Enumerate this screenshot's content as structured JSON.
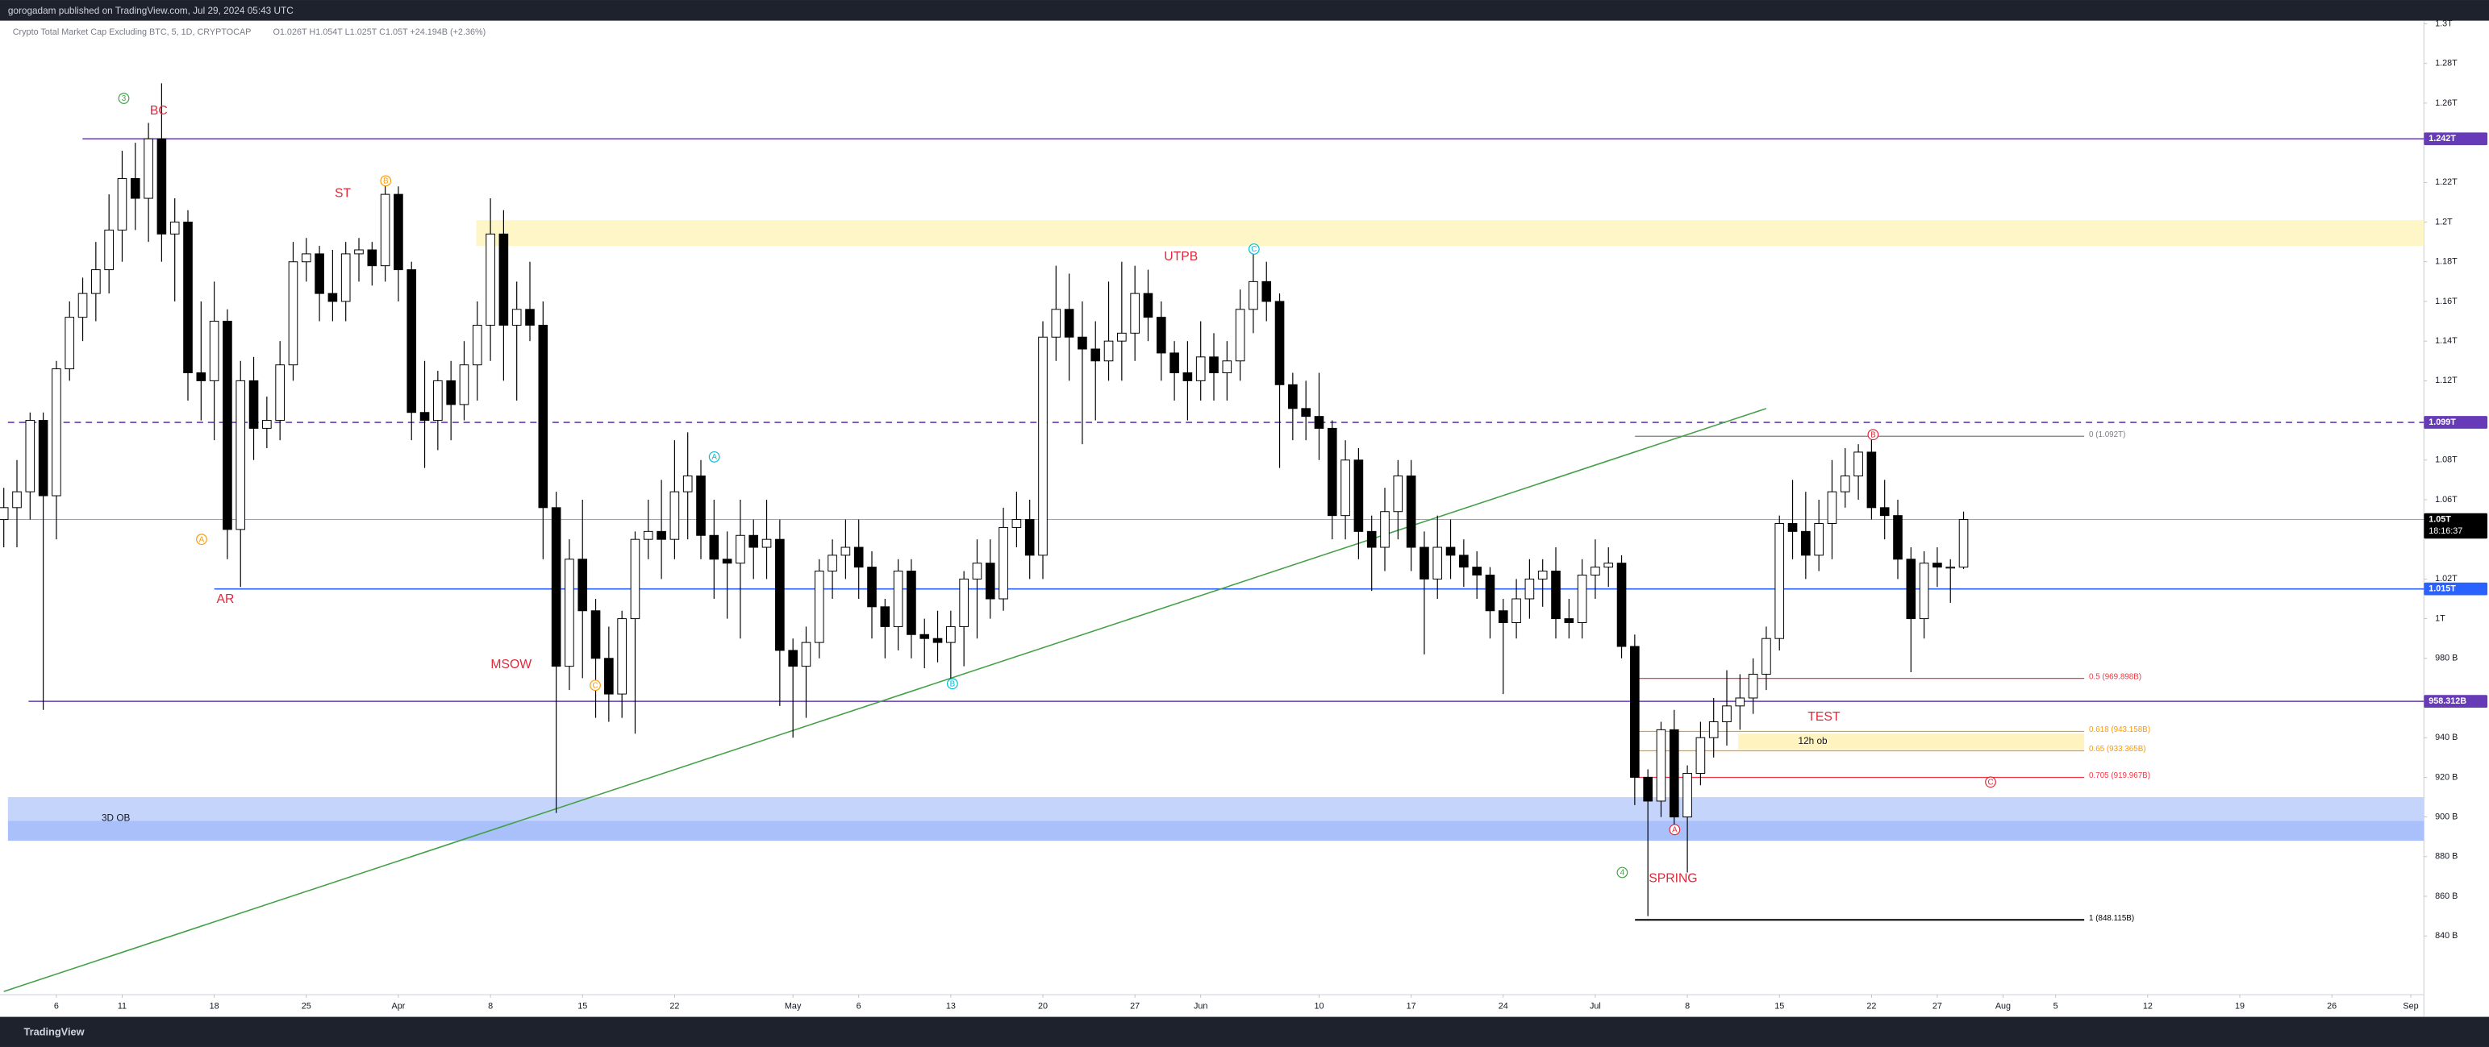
{
  "header": {
    "published": "gorogadam published on TradingView.com, Jul 29, 2024 05:43 UTC",
    "symbol": "Crypto Total Market Cap Excluding BTC, 5, 1D, CRYPTOCAP",
    "ohlc": "O1.026T H1.054T L1.025T C1.05T +24.194B (+2.36%)"
  },
  "chart_data": {
    "type": "candlestick",
    "up_color": "#ffffff",
    "down_color": "#000000",
    "x": [
      "2024-03-02",
      "2024-03-03",
      "2024-03-04",
      "2024-03-05",
      "2024-03-06",
      "2024-03-07",
      "2024-03-08",
      "2024-03-09",
      "2024-03-10",
      "2024-03-11",
      "2024-03-12",
      "2024-03-13",
      "2024-03-14",
      "2024-03-15",
      "2024-03-16",
      "2024-03-17",
      "2024-03-18",
      "2024-03-19",
      "2024-03-20",
      "2024-03-21",
      "2024-03-22",
      "2024-03-23",
      "2024-03-24",
      "2024-03-25",
      "2024-03-26",
      "2024-03-27",
      "2024-03-28",
      "2024-03-29",
      "2024-03-30",
      "2024-03-31",
      "2024-04-01",
      "2024-04-02",
      "2024-04-03",
      "2024-04-04",
      "2024-04-05",
      "2024-04-06",
      "2024-04-07",
      "2024-04-08",
      "2024-04-09",
      "2024-04-10",
      "2024-04-11",
      "2024-04-12",
      "2024-04-13",
      "2024-04-14",
      "2024-04-15",
      "2024-04-16",
      "2024-04-17",
      "2024-04-18",
      "2024-04-19",
      "2024-04-20",
      "2024-04-21",
      "2024-04-22",
      "2024-04-23",
      "2024-04-24",
      "2024-04-25",
      "2024-04-26",
      "2024-04-27",
      "2024-04-28",
      "2024-04-29",
      "2024-04-30",
      "2024-05-01",
      "2024-05-02",
      "2024-05-03",
      "2024-05-04",
      "2024-05-05",
      "2024-05-06",
      "2024-05-07",
      "2024-05-08",
      "2024-05-09",
      "2024-05-10",
      "2024-05-11",
      "2024-05-12",
      "2024-05-13",
      "2024-05-14",
      "2024-05-15",
      "2024-05-16",
      "2024-05-17",
      "2024-05-18",
      "2024-05-19",
      "2024-05-20",
      "2024-05-21",
      "2024-05-22",
      "2024-05-23",
      "2024-05-24",
      "2024-05-25",
      "2024-05-26",
      "2024-05-27",
      "2024-05-28",
      "2024-05-29",
      "2024-05-30",
      "2024-05-31",
      "2024-06-01",
      "2024-06-02",
      "2024-06-03",
      "2024-06-04",
      "2024-06-05",
      "2024-06-06",
      "2024-06-07",
      "2024-06-08",
      "2024-06-09",
      "2024-06-10",
      "2024-06-11",
      "2024-06-12",
      "2024-06-13",
      "2024-06-14",
      "2024-06-15",
      "2024-06-16",
      "2024-06-17",
      "2024-06-18",
      "2024-06-19",
      "2024-06-20",
      "2024-06-21",
      "2024-06-22",
      "2024-06-23",
      "2024-06-24",
      "2024-06-25",
      "2024-06-26",
      "2024-06-27",
      "2024-06-28",
      "2024-06-29",
      "2024-06-30",
      "2024-07-01",
      "2024-07-02",
      "2024-07-03",
      "2024-07-04",
      "2024-07-05",
      "2024-07-06",
      "2024-07-07",
      "2024-07-08",
      "2024-07-09",
      "2024-07-10",
      "2024-07-11",
      "2024-07-12",
      "2024-07-13",
      "2024-07-14",
      "2024-07-15",
      "2024-07-16",
      "2024-07-17",
      "2024-07-18",
      "2024-07-19",
      "2024-07-20",
      "2024-07-21",
      "2024-07-22",
      "2024-07-23",
      "2024-07-24",
      "2024-07-25",
      "2024-07-26",
      "2024-07-27",
      "2024-07-28",
      "2024-07-29"
    ],
    "open": [
      1050,
      1056,
      1064,
      1100,
      1062,
      1126,
      1152,
      1164,
      1176,
      1196,
      1222,
      1212,
      1242,
      1194,
      1200,
      1124,
      1120,
      1150,
      1045,
      1120,
      1096,
      1100,
      1128,
      1180,
      1184,
      1164,
      1160,
      1184,
      1186,
      1178,
      1214,
      1176,
      1104,
      1100,
      1120,
      1108,
      1128,
      1148,
      1194,
      1148,
      1156,
      1148,
      1056,
      976,
      1030,
      1004,
      980,
      962,
      1000,
      1040,
      1044,
      1040,
      1064,
      1072,
      1042,
      1030,
      1028,
      1042,
      1036,
      1040,
      984,
      976,
      988,
      1024,
      1032,
      1036,
      1026,
      1006,
      996,
      1024,
      992,
      990,
      988,
      996,
      1020,
      1028,
      1010,
      1046,
      1050,
      1032,
      1142,
      1156,
      1142,
      1136,
      1130,
      1140,
      1144,
      1164,
      1152,
      1134,
      1124,
      1120,
      1132,
      1124,
      1130,
      1156,
      1170,
      1160,
      1118,
      1106,
      1102,
      1096,
      1052,
      1080,
      1044,
      1036,
      1054,
      1072,
      1036,
      1020,
      1036,
      1032,
      1026,
      1022,
      1004,
      998,
      1010,
      1020,
      1024,
      1000,
      998,
      1022,
      1026,
      1028,
      986,
      920,
      908,
      944,
      900,
      922,
      940,
      948,
      956,
      960,
      972,
      990,
      1048,
      1044,
      1032,
      1048,
      1064,
      1072,
      1084,
      1056,
      1052,
      1030,
      1000,
      1028,
      1026,
      1026
    ],
    "high": [
      1066,
      1080,
      1104,
      1104,
      1130,
      1160,
      1172,
      1190,
      1214,
      1236,
      1240,
      1250,
      1270,
      1212,
      1206,
      1160,
      1170,
      1156,
      1130,
      1132,
      1112,
      1140,
      1190,
      1192,
      1188,
      1186,
      1190,
      1192,
      1190,
      1222,
      1218,
      1180,
      1130,
      1125,
      1130,
      1140,
      1160,
      1212,
      1206,
      1170,
      1180,
      1160,
      1064,
      1040,
      1060,
      1010,
      996,
      1004,
      1044,
      1060,
      1070,
      1090,
      1094,
      1080,
      1060,
      1044,
      1060,
      1050,
      1060,
      1050,
      990,
      996,
      1030,
      1040,
      1050,
      1050,
      1034,
      1010,
      1030,
      1030,
      1000,
      1004,
      1004,
      1024,
      1040,
      1040,
      1056,
      1064,
      1060,
      1150,
      1178,
      1174,
      1160,
      1150,
      1170,
      1180,
      1178,
      1176,
      1160,
      1140,
      1140,
      1150,
      1144,
      1140,
      1166,
      1186,
      1180,
      1164,
      1124,
      1120,
      1124,
      1100,
      1090,
      1086,
      1052,
      1066,
      1080,
      1080,
      1044,
      1052,
      1050,
      1040,
      1034,
      1026,
      1010,
      1020,
      1030,
      1030,
      1036,
      1010,
      1030,
      1040,
      1036,
      1032,
      992,
      924,
      948,
      954,
      926,
      948,
      960,
      974,
      972,
      980,
      996,
      1052,
      1070,
      1064,
      1060,
      1080,
      1086,
      1088,
      1094,
      1070,
      1060,
      1036,
      1034,
      1036,
      1030,
      1054
    ],
    "low": [
      1036,
      1036,
      1050,
      954,
      1040,
      1120,
      1140,
      1150,
      1164,
      1180,
      1196,
      1190,
      1180,
      1160,
      1110,
      1100,
      1090,
      1030,
      1016,
      1080,
      1086,
      1090,
      1120,
      1170,
      1150,
      1150,
      1150,
      1170,
      1168,
      1170,
      1160,
      1090,
      1076,
      1085,
      1090,
      1100,
      1110,
      1130,
      1120,
      1110,
      1140,
      1030,
      902,
      964,
      970,
      950,
      948,
      950,
      942,
      1030,
      1020,
      1030,
      1040,
      1030,
      1010,
      1000,
      990,
      1020,
      1020,
      956,
      940,
      950,
      980,
      1010,
      1020,
      1010,
      990,
      980,
      984,
      980,
      975,
      978,
      966,
      976,
      990,
      1000,
      1004,
      1036,
      1020,
      1020,
      1130,
      1120,
      1088,
      1100,
      1120,
      1120,
      1130,
      1140,
      1120,
      1110,
      1100,
      1110,
      1110,
      1110,
      1120,
      1144,
      1150,
      1076,
      1090,
      1090,
      1080,
      1040,
      1040,
      1030,
      1014,
      1024,
      1040,
      1024,
      982,
      1010,
      1020,
      1016,
      1010,
      990,
      962,
      990,
      1000,
      1006,
      990,
      990,
      990,
      1010,
      1016,
      980,
      906,
      850,
      900,
      894,
      872,
      916,
      930,
      936,
      944,
      952,
      964,
      984,
      1030,
      1020,
      1024,
      1030,
      1056,
      1060,
      1050,
      1040,
      1020,
      973,
      990,
      1016,
      1008,
      1025
    ],
    "close": [
      1056,
      1064,
      1100,
      1062,
      1126,
      1152,
      1164,
      1176,
      1196,
      1222,
      1212,
      1242,
      1194,
      1200,
      1124,
      1120,
      1150,
      1045,
      1120,
      1096,
      1100,
      1128,
      1180,
      1184,
      1164,
      1160,
      1184,
      1186,
      1178,
      1214,
      1176,
      1104,
      1100,
      1120,
      1108,
      1128,
      1148,
      1194,
      1148,
      1156,
      1148,
      1056,
      976,
      1030,
      1004,
      980,
      962,
      1000,
      1040,
      1044,
      1040,
      1064,
      1072,
      1042,
      1030,
      1028,
      1042,
      1036,
      1040,
      984,
      976,
      988,
      1024,
      1032,
      1036,
      1026,
      1006,
      996,
      1024,
      992,
      990,
      988,
      996,
      1020,
      1028,
      1010,
      1046,
      1050,
      1032,
      1142,
      1156,
      1142,
      1136,
      1130,
      1140,
      1144,
      1164,
      1152,
      1134,
      1124,
      1120,
      1132,
      1124,
      1130,
      1156,
      1170,
      1160,
      1118,
      1106,
      1102,
      1096,
      1052,
      1080,
      1044,
      1036,
      1054,
      1072,
      1036,
      1020,
      1036,
      1032,
      1026,
      1022,
      1004,
      998,
      1010,
      1020,
      1024,
      1000,
      998,
      1022,
      1026,
      1028,
      986,
      920,
      908,
      944,
      900,
      922,
      940,
      948,
      956,
      960,
      972,
      990,
      1048,
      1044,
      1032,
      1048,
      1064,
      1072,
      1084,
      1056,
      1052,
      1030,
      1000,
      1028,
      1026,
      1026,
      1050
    ],
    "xlim": [
      "2024-03-01",
      "2024-09-02"
    ],
    "xticks": [
      {
        "value": "2024-03-06",
        "label": "6"
      },
      {
        "value": "2024-03-11",
        "label": "11"
      },
      {
        "value": "2024-03-18",
        "label": "18"
      },
      {
        "value": "2024-03-25",
        "label": "25"
      },
      {
        "value": "2024-04-01",
        "label": "Apr"
      },
      {
        "value": "2024-04-08",
        "label": "8"
      },
      {
        "value": "2024-04-15",
        "label": "15"
      },
      {
        "value": "2024-04-22",
        "label": "22"
      },
      {
        "value": "2024-05-01",
        "label": "May"
      },
      {
        "value": "2024-05-06",
        "label": "6"
      },
      {
        "value": "2024-05-13",
        "label": "13"
      },
      {
        "value": "2024-05-20",
        "label": "20"
      },
      {
        "value": "2024-05-27",
        "label": "27"
      },
      {
        "value": "2024-06-01",
        "label": "Jun"
      },
      {
        "value": "2024-06-10",
        "label": "10"
      },
      {
        "value": "2024-06-17",
        "label": "17"
      },
      {
        "value": "2024-06-24",
        "label": "24"
      },
      {
        "value": "2024-07-01",
        "label": "Jul"
      },
      {
        "value": "2024-07-08",
        "label": "8"
      },
      {
        "value": "2024-07-15",
        "label": "15"
      },
      {
        "value": "2024-07-22",
        "label": "22"
      },
      {
        "value": "2024-07-27",
        "label": "27"
      },
      {
        "value": "2024-08-01",
        "label": "Aug"
      },
      {
        "value": "2024-08-05",
        "label": "5"
      },
      {
        "value": "2024-08-12",
        "label": "12"
      },
      {
        "value": "2024-08-19",
        "label": "19"
      },
      {
        "value": "2024-08-26",
        "label": "26"
      },
      {
        "value": "2024-09-01",
        "label": "Sep"
      }
    ],
    "ylim": [
      800,
      1312
    ],
    "yticks": [
      {
        "value": 840,
        "label": "840 B"
      },
      {
        "value": 860,
        "label": "860 B"
      },
      {
        "value": 880,
        "label": "880 B"
      },
      {
        "value": 900,
        "label": "900 B"
      },
      {
        "value": 920,
        "label": "920 B"
      },
      {
        "value": 940,
        "label": "940 B"
      },
      {
        "value": 980,
        "label": "980 B"
      },
      {
        "value": 1000,
        "label": "1T"
      },
      {
        "value": 1020,
        "label": "1.02T"
      },
      {
        "value": 1060,
        "label": "1.06T"
      },
      {
        "value": 1080,
        "label": "1.08T"
      },
      {
        "value": 1120,
        "label": "1.12T"
      },
      {
        "value": 1140,
        "label": "1.14T"
      },
      {
        "value": 1160,
        "label": "1.16T"
      },
      {
        "value": 1180,
        "label": "1.18T"
      },
      {
        "value": 1200,
        "label": "1.2T"
      },
      {
        "value": 1220,
        "label": "1.22T"
      },
      {
        "value": 1260,
        "label": "1.26T"
      },
      {
        "value": 1280,
        "label": "1.28T"
      },
      {
        "value": 1300,
        "label": "1.3T"
      }
    ],
    "levels": [
      {
        "value": 1242,
        "label": "1.242T",
        "color": "#673ab7",
        "dashed": false
      },
      {
        "value": 1099,
        "label": "1.099T",
        "color": "#673ab7",
        "dashed": true
      },
      {
        "value": 1050,
        "label": "1.05T",
        "color": "#000000",
        "dashed": false
      },
      {
        "value": 1015,
        "label": "1.015T",
        "color": "#2962ff",
        "dashed": false
      },
      {
        "value": 958.312,
        "label": "958.312B",
        "color": "#673ab7",
        "dashed": false
      }
    ],
    "countdown": "18:16:37",
    "fib": [
      {
        "value": 1092,
        "label": "0 (1.092T)",
        "color": "#787b86"
      },
      {
        "value": 969.898,
        "label": "0.5 (969.898B)",
        "color": "#f23645"
      },
      {
        "value": 943.158,
        "label": "0.618 (943.158B)",
        "color": "#ff9800"
      },
      {
        "value": 933.365,
        "label": "0.65 (933.365B)",
        "color": "#ff9800"
      },
      {
        "value": 919.967,
        "label": "0.705 (919.967B)",
        "color": "#f23645"
      },
      {
        "value": 848.115,
        "label": "1 (848.115B)",
        "color": "#000000"
      }
    ],
    "zones": [
      {
        "range": [
          1188,
          1201
        ],
        "color": "#fff6c7"
      },
      {
        "range": [
          898,
          910
        ],
        "color": "#c5d4fb",
        "label": "3D OB"
      },
      {
        "range": [
          888,
          898
        ],
        "color": "#a9c0fa"
      },
      {
        "range": [
          934,
          942
        ],
        "color": "#fff3bf",
        "label": "12h ob"
      }
    ],
    "trendline": {
      "x": [
        "2024-03-02",
        "2024-07-14"
      ],
      "values": [
        812,
        1106
      ],
      "color": "#43a047"
    },
    "annotations": [
      "BC",
      "ST",
      "AR",
      "MSOW",
      "UTPB",
      "TEST",
      "SPRING"
    ],
    "markers": [
      "3",
      "A",
      "B",
      "C",
      "A",
      "B",
      "C",
      "4",
      "A",
      "B",
      "C"
    ]
  },
  "footer": "TradingView"
}
